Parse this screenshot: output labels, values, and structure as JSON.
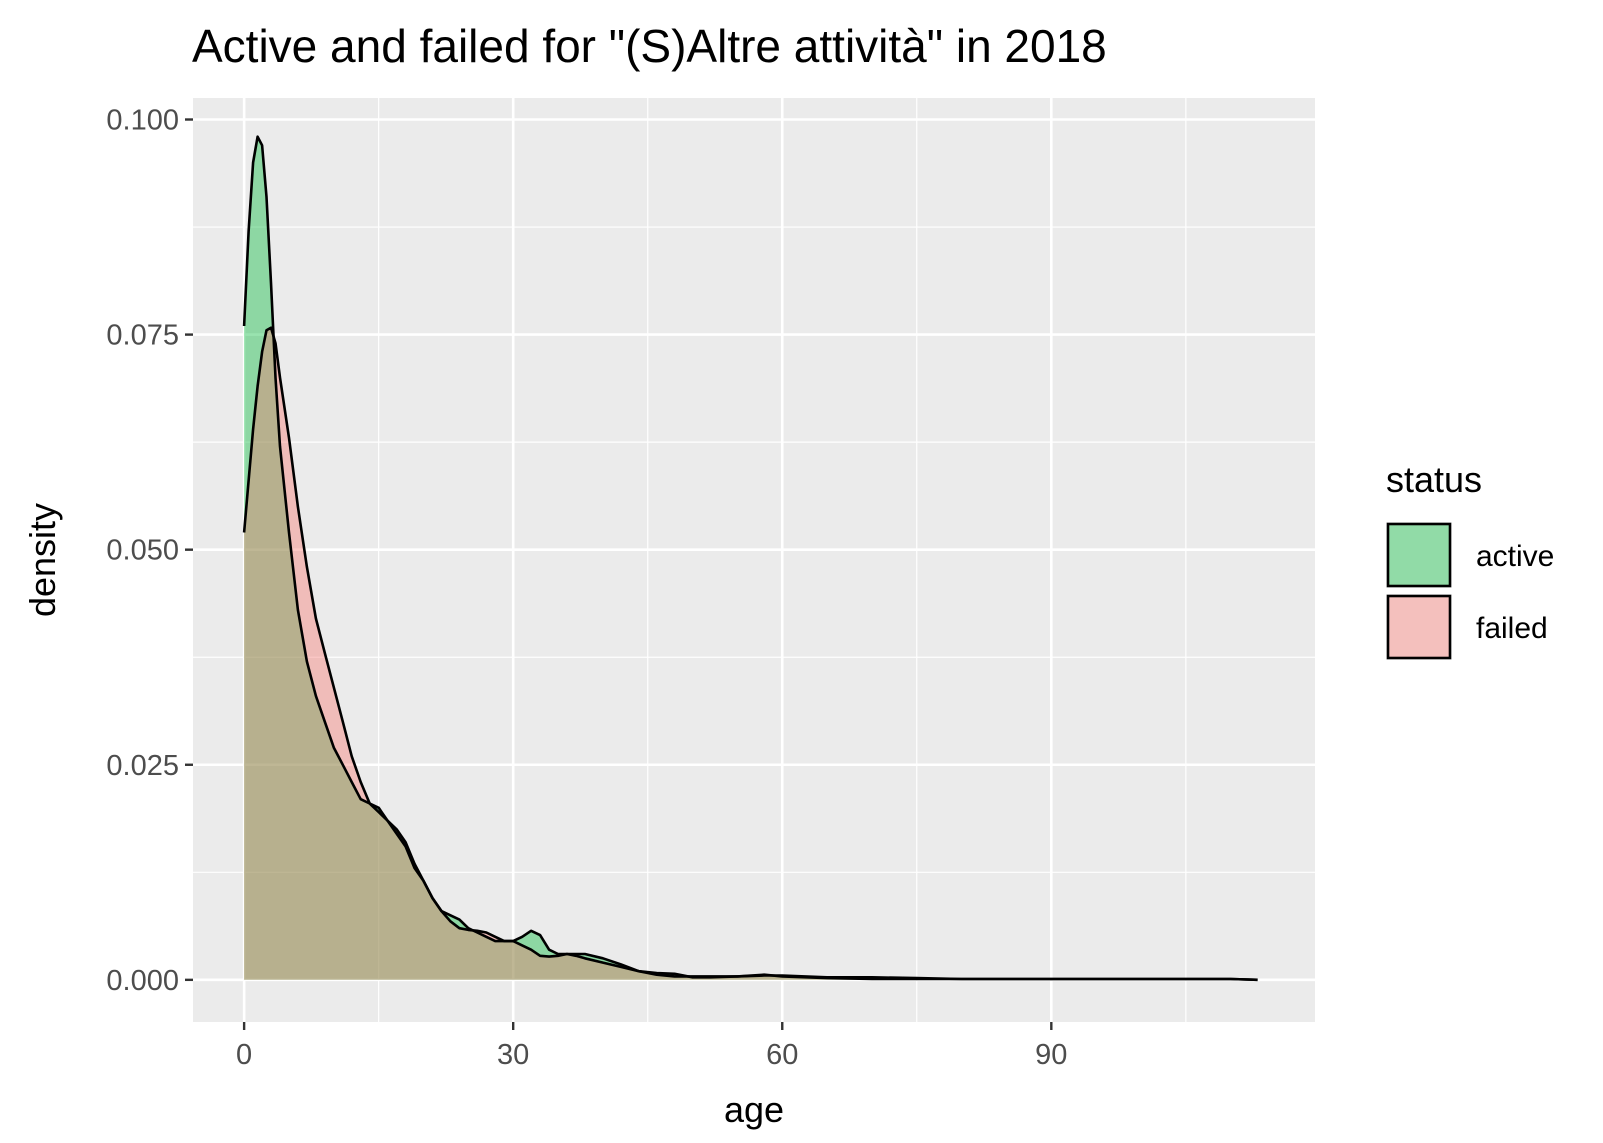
{
  "chart_data": {
    "type": "area",
    "title": "Active and failed for \"(S)Altre attività\" in 2018",
    "xlabel": "age",
    "ylabel": "density",
    "xlim": [
      -5.7,
      119.4
    ],
    "ylim": [
      -0.0049,
      0.1025
    ],
    "x_ticks": [
      0,
      30,
      60,
      90
    ],
    "x_tick_labels": [
      "0",
      "30",
      "60",
      "90"
    ],
    "x_minor": [
      15,
      45,
      75,
      105
    ],
    "y_ticks": [
      0,
      0.025,
      0.05,
      0.075,
      0.1
    ],
    "y_tick_labels": [
      "0.000",
      "0.025",
      "0.050",
      "0.075",
      "0.100"
    ],
    "y_minor": [
      0.0125,
      0.0375,
      0.0625,
      0.0875
    ],
    "grid": true,
    "legend": {
      "title": "status",
      "position": "right"
    },
    "series": [
      {
        "name": "active",
        "color": "#00BA38",
        "fill_opacity": 0.4,
        "x": [
          0,
          0.5,
          1,
          1.5,
          2,
          2.5,
          3,
          3.5,
          4,
          5,
          6,
          7,
          8,
          9,
          10,
          11,
          12,
          13,
          14,
          15,
          16,
          17,
          18,
          19,
          20,
          21,
          22,
          23,
          24,
          25,
          26,
          27,
          28,
          29,
          30,
          31,
          32,
          33,
          34,
          35,
          36,
          37,
          38,
          40,
          42,
          44,
          46,
          48,
          50,
          52,
          55,
          58,
          60,
          65,
          70,
          75,
          80,
          90,
          100,
          110,
          113
        ],
        "y": [
          0.076,
          0.087,
          0.095,
          0.098,
          0.097,
          0.091,
          0.081,
          0.07,
          0.062,
          0.052,
          0.043,
          0.037,
          0.033,
          0.03,
          0.027,
          0.025,
          0.023,
          0.021,
          0.0205,
          0.02,
          0.0185,
          0.017,
          0.0155,
          0.013,
          0.0115,
          0.0095,
          0.008,
          0.0075,
          0.007,
          0.006,
          0.0055,
          0.005,
          0.0045,
          0.0045,
          0.0045,
          0.005,
          0.0057,
          0.0052,
          0.0035,
          0.003,
          0.003,
          0.003,
          0.003,
          0.0025,
          0.0018,
          0.001,
          0.0008,
          0.0007,
          0.0003,
          0.0003,
          0.0004,
          0.0005,
          0.0005,
          0.0003,
          0.0003,
          0.0002,
          0.0001,
          0.0001,
          0.0001,
          0.0001,
          0
        ]
      },
      {
        "name": "failed",
        "color": "#F8766D",
        "fill_opacity": 0.4,
        "x": [
          0,
          0.5,
          1,
          1.5,
          2,
          2.5,
          3,
          3.5,
          4,
          5,
          6,
          7,
          8,
          9,
          10,
          11,
          12,
          13,
          14,
          15,
          16,
          17,
          18,
          19,
          20,
          21,
          22,
          23,
          24,
          25,
          26,
          27,
          28,
          29,
          30,
          31,
          32,
          33,
          34,
          35,
          36,
          37,
          38,
          40,
          42,
          44,
          46,
          48,
          50,
          52,
          55,
          58,
          60,
          65,
          70,
          75,
          80,
          90,
          100,
          110,
          113
        ],
        "y": [
          0.052,
          0.058,
          0.064,
          0.069,
          0.073,
          0.0755,
          0.0758,
          0.074,
          0.07,
          0.063,
          0.055,
          0.048,
          0.042,
          0.038,
          0.034,
          0.03,
          0.026,
          0.023,
          0.0205,
          0.0195,
          0.0185,
          0.0175,
          0.016,
          0.0135,
          0.0115,
          0.0095,
          0.008,
          0.0068,
          0.006,
          0.0058,
          0.0057,
          0.0055,
          0.005,
          0.0045,
          0.0045,
          0.004,
          0.0035,
          0.0028,
          0.0027,
          0.0028,
          0.003,
          0.0028,
          0.0025,
          0.002,
          0.0015,
          0.001,
          0.0006,
          0.0004,
          0.0004,
          0.0004,
          0.0004,
          0.0006,
          0.0004,
          0.0002,
          0.0001,
          0.0001,
          0.0001,
          0.0001,
          0.0001,
          0.0001,
          0
        ]
      }
    ]
  }
}
